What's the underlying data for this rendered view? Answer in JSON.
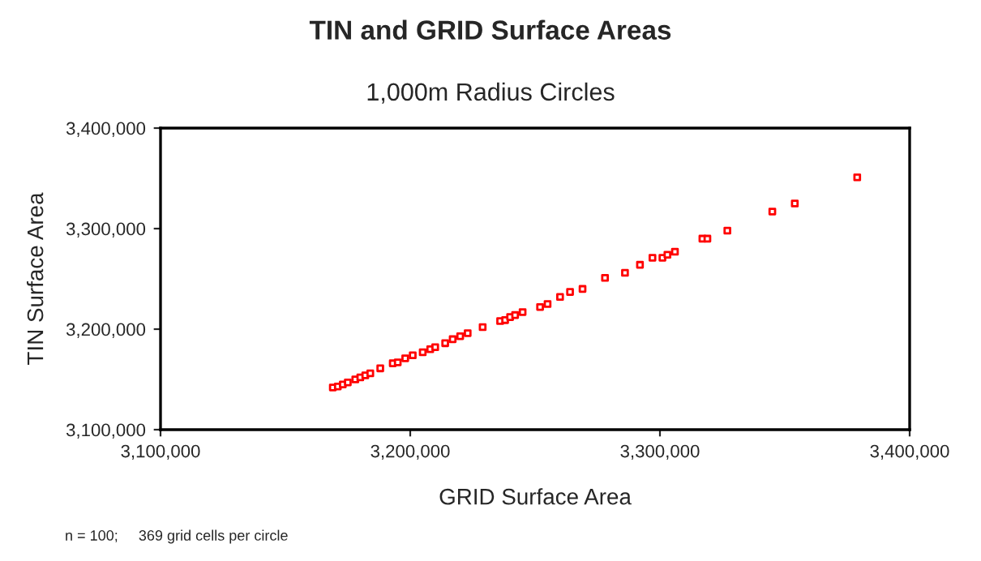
{
  "chart_data": {
    "type": "scatter",
    "title": "TIN and GRID Surface Areas",
    "subtitle": "1,000m Radius Circles",
    "xlabel": "GRID Surface Area",
    "ylabel": "TIN Surface Area",
    "annotations": [
      "n = 100;     369 grid cells per circle"
    ],
    "marker": "square",
    "grid": false,
    "legend": false,
    "xlim": [
      3100000,
      3400000
    ],
    "xticks": [
      {
        "value": 3100000,
        "label": "3,100,000"
      },
      {
        "value": 3200000,
        "label": "3,200,000"
      },
      {
        "value": 3300000,
        "label": "3,300,000"
      },
      {
        "value": 3400000,
        "label": "3,400,000"
      }
    ],
    "ylim": [
      3100000,
      3400000
    ],
    "yticks": [
      {
        "value": 3100000,
        "label": "3,100,000"
      },
      {
        "value": 3200000,
        "label": "3,200,000"
      },
      {
        "value": 3300000,
        "label": "3,300,000"
      },
      {
        "value": 3400000,
        "label": "3,400,000"
      }
    ],
    "series": [
      {
        "color": "#ff0000",
        "x": [
          3169000,
          3171000,
          3173000,
          3175000,
          3178000,
          3180000,
          3182000,
          3184000,
          3188000,
          3193000,
          3195000,
          3198000,
          3201000,
          3205000,
          3208000,
          3210000,
          3214000,
          3217000,
          3220000,
          3223000,
          3229000,
          3236000,
          3238000,
          3240000,
          3242000,
          3245000,
          3252000,
          3255000,
          3260000,
          3264000,
          3269000,
          3278000,
          3286000,
          3292000,
          3297000,
          3301000,
          3303000,
          3306000,
          3317000,
          3319000,
          3327000,
          3345000,
          3354000,
          3379000
        ],
        "values": [
          3142000,
          3143000,
          3145000,
          3147000,
          3150000,
          3152000,
          3154000,
          3156000,
          3161000,
          3166000,
          3167000,
          3171000,
          3174000,
          3177000,
          3180000,
          3182000,
          3186000,
          3190000,
          3193000,
          3196000,
          3202000,
          3208000,
          3209000,
          3212000,
          3214000,
          3217000,
          3222000,
          3225000,
          3232000,
          3237000,
          3240000,
          3251000,
          3256000,
          3264000,
          3271000,
          3271000,
          3274000,
          3277000,
          3290000,
          3290000,
          3298000,
          3317000,
          3325000,
          3351000
        ]
      }
    ]
  }
}
